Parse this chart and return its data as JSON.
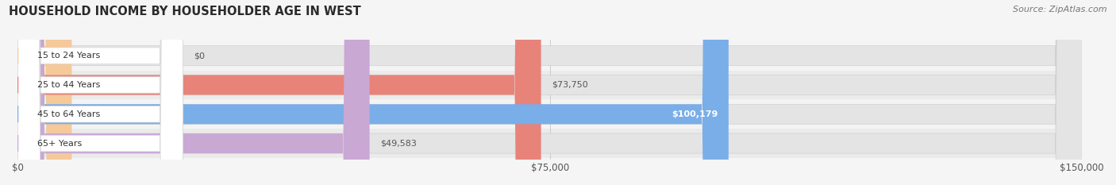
{
  "title": "HOUSEHOLD INCOME BY HOUSEHOLDER AGE IN WEST",
  "source": "Source: ZipAtlas.com",
  "categories": [
    "15 to 24 Years",
    "25 to 44 Years",
    "45 to 64 Years",
    "65+ Years"
  ],
  "values": [
    0,
    73750,
    100179,
    49583
  ],
  "bar_colors": [
    "#f5c99a",
    "#e8837a",
    "#7aaee8",
    "#c9a8d4"
  ],
  "row_bg_colors": [
    "#efefef",
    "#e8e8e8",
    "#efefef",
    "#e8e8e8"
  ],
  "pill_bg_color": "#e0e0e0",
  "xlim": [
    0,
    150000
  ],
  "xtick_values": [
    0,
    75000,
    150000
  ],
  "xtick_labels": [
    "$0",
    "$75,000",
    "$150,000"
  ],
  "value_labels": [
    "$0",
    "$73,750",
    "$100,179",
    "$49,583"
  ],
  "label_inside": [
    false,
    false,
    true,
    false
  ],
  "fig_bg_color": "#f5f5f5",
  "figsize": [
    14.06,
    2.33
  ],
  "dpi": 100
}
